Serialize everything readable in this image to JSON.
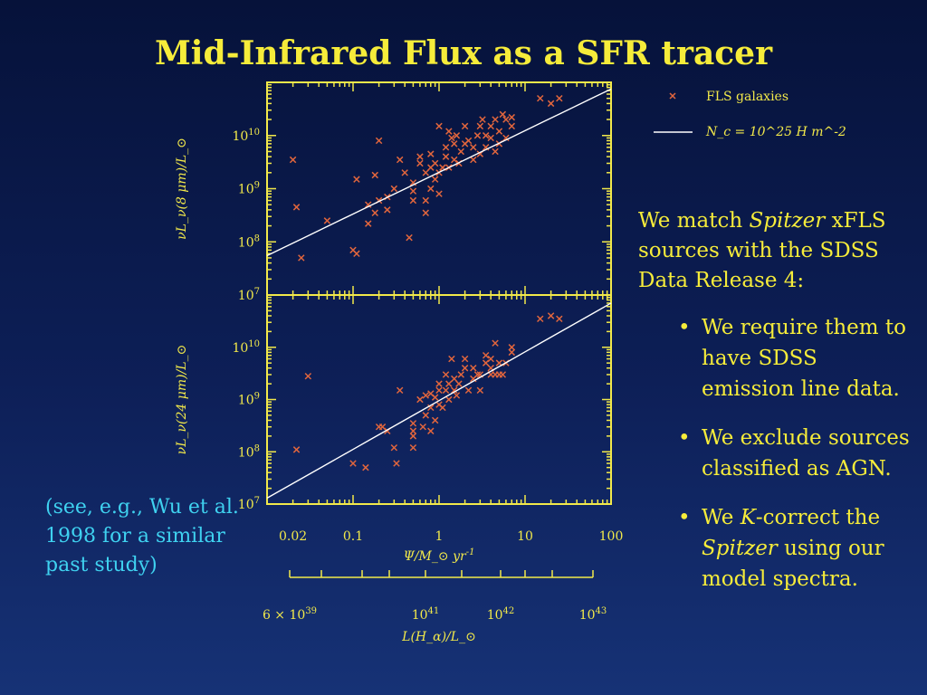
{
  "slide": {
    "title": "Mid-Infrared Flux as a SFR tracer"
  },
  "side_text": {
    "intro_parts": [
      "We match ",
      "Spitzer",
      " xFLS sources with the SDSS Data Release 4:"
    ],
    "bullets": [
      {
        "parts": [
          "We require them to have SDSS emission line data."
        ]
      },
      {
        "parts": [
          "We exclude sources classified as AGN."
        ]
      },
      {
        "parts": [
          "We ",
          "K",
          "-correct the ",
          "Spitzer",
          " using our model spectra."
        ]
      }
    ]
  },
  "note": {
    "text": "(see, e.g., Wu et al. 1998 for a similar past study)"
  },
  "colors": {
    "text": "#f2e94a",
    "marker": "#e2663d",
    "fit_line": "#ffffff",
    "note": "#3fd2f0"
  },
  "chart_data": [
    {
      "type": "scatter",
      "panel": "top",
      "ylabel": "νL_ν(8 μm)/L_⊙",
      "yscale": "log",
      "ylim": [
        10000000.0,
        100000000000.0
      ],
      "y_tick_labels": [
        "10^7",
        "10^8",
        "10^9",
        "10^10"
      ],
      "xscale": "log",
      "xlim": [
        0.01,
        100
      ],
      "legend": {
        "placement": "top-right",
        "entries": [
          "FLS galaxies",
          "N_c = 10^25 H m^-2"
        ]
      },
      "series": [
        {
          "name": "FLS galaxies",
          "x": [
            0.02,
            0.022,
            0.025,
            0.05,
            0.1,
            0.11,
            0.11,
            0.15,
            0.15,
            0.18,
            0.18,
            0.2,
            0.2,
            0.25,
            0.25,
            0.3,
            0.35,
            0.4,
            0.45,
            0.5,
            0.5,
            0.5,
            0.6,
            0.6,
            0.7,
            0.7,
            0.7,
            0.8,
            0.8,
            0.8,
            0.9,
            0.9,
            1.0,
            1.0,
            1.0,
            1.1,
            1.2,
            1.2,
            1.3,
            1.3,
            1.4,
            1.5,
            1.5,
            1.6,
            1.7,
            1.8,
            2.0,
            2.0,
            2.2,
            2.5,
            2.5,
            2.8,
            3.0,
            3.0,
            3.2,
            3.5,
            3.5,
            4.0,
            4.0,
            4.5,
            4.5,
            5.0,
            5.0,
            5.5,
            6.0,
            6.0,
            7.0,
            7.0,
            15,
            20,
            25
          ],
          "y": [
            3500000000.0,
            450000000.0,
            50000000.0,
            250000000.0,
            70000000.0,
            60000000.0,
            1500000000.0,
            220000000.0,
            500000000.0,
            1800000000.0,
            350000000.0,
            8000000000.0,
            600000000.0,
            700000000.0,
            400000000.0,
            1000000000.0,
            3500000000.0,
            2000000000.0,
            120000000.0,
            1300000000.0,
            900000000.0,
            600000000.0,
            4000000000.0,
            3000000000.0,
            2000000000.0,
            600000000.0,
            350000000.0,
            2500000000.0,
            4500000000.0,
            1000000000.0,
            1500000000.0,
            3000000000.0,
            2000000000.0,
            800000000.0,
            15000000000.0,
            2500000000.0,
            4000000000.0,
            6000000000.0,
            2500000000.0,
            12000000000.0,
            9000000000.0,
            3500000000.0,
            7000000000.0,
            10000000000.0,
            3000000000.0,
            5000000000.0,
            15000000000.0,
            7000000000.0,
            8000000000.0,
            3500000000.0,
            6000000000.0,
            10000000000.0,
            4500000000.0,
            15000000000.0,
            20000000000.0,
            6000000000.0,
            10000000000.0,
            15000000000.0,
            9000000000.0,
            5000000000.0,
            20000000000.0,
            7000000000.0,
            12000000000.0,
            25000000000.0,
            9000000000.0,
            20000000000.0,
            15000000000.0,
            22000000000.0,
            50000000000.0,
            40000000000.0,
            50000000000.0
          ]
        },
        {
          "name": "N_c = 10^25 H m^-2",
          "type": "line",
          "x": [
            0.01,
            100
          ],
          "y": [
            55000000.0,
            75000000000.0
          ]
        }
      ]
    },
    {
      "type": "scatter",
      "panel": "bottom",
      "ylabel": "νL_ν(24 μm)/L_⊙",
      "yscale": "log",
      "ylim": [
        10000000.0,
        100000000000.0
      ],
      "y_tick_labels": [
        "10^7",
        "10^8",
        "10^9",
        "10^10"
      ],
      "xscale": "log",
      "xlim": [
        0.01,
        100
      ],
      "x_tick_labels": [
        "0.02",
        "0.1",
        "1",
        "10",
        "100"
      ],
      "xlabel": "Ψ/M_⊙ yr^-1",
      "secondary_x": {
        "tick_labels": [
          "6 × 10^39",
          "10^41",
          "10^42",
          "10^43"
        ],
        "xlabel": "L(H_α)/L_⊙"
      },
      "series": [
        {
          "name": "FLS galaxies",
          "x": [
            0.022,
            0.03,
            0.1,
            0.14,
            0.2,
            0.22,
            0.25,
            0.3,
            0.32,
            0.35,
            0.5,
            0.5,
            0.5,
            0.5,
            0.6,
            0.65,
            0.7,
            0.7,
            0.8,
            0.8,
            0.8,
            0.9,
            0.9,
            1.0,
            1.0,
            1.0,
            1.1,
            1.2,
            1.2,
            1.3,
            1.3,
            1.4,
            1.5,
            1.5,
            1.6,
            1.7,
            1.8,
            2.0,
            2.0,
            2.2,
            2.5,
            2.5,
            2.8,
            3.0,
            3.0,
            3.5,
            3.5,
            4.0,
            4.0,
            4.0,
            4.5,
            4.5,
            5.0,
            5.0,
            5.5,
            6.0,
            7.0,
            7.0,
            15,
            20,
            25
          ],
          "y": [
            110000000.0,
            2800000000.0,
            60000000.0,
            50000000.0,
            300000000.0,
            300000000.0,
            250000000.0,
            120000000.0,
            60000000.0,
            1500000000.0,
            350000000.0,
            120000000.0,
            200000000.0,
            250000000.0,
            1000000000.0,
            300000000.0,
            500000000.0,
            1200000000.0,
            700000000.0,
            1300000000.0,
            250000000.0,
            1100000000.0,
            400000000.0,
            2000000000.0,
            1500000000.0,
            800000000.0,
            700000000.0,
            1500000000.0,
            3000000000.0,
            1000000000.0,
            2000000000.0,
            6000000000.0,
            2500000000.0,
            1500000000.0,
            1200000000.0,
            2000000000.0,
            3000000000.0,
            4000000000.0,
            6000000000.0,
            1500000000.0,
            2500000000.0,
            4000000000.0,
            3000000000.0,
            1500000000.0,
            3000000000.0,
            5000000000.0,
            7000000000.0,
            3000000000.0,
            6000000000.0,
            4000000000.0,
            12000000000.0,
            3000000000.0,
            5000000000.0,
            3000000000.0,
            3000000000.0,
            5000000000.0,
            10000000000.0,
            8000000000.0,
            35000000000.0,
            40000000000.0,
            35000000000.0
          ]
        },
        {
          "name": "N_c = 10^25 H m^-2",
          "type": "line",
          "x": [
            0.01,
            100
          ],
          "y": [
            13000000.0,
            70000000000.0
          ]
        }
      ]
    }
  ]
}
